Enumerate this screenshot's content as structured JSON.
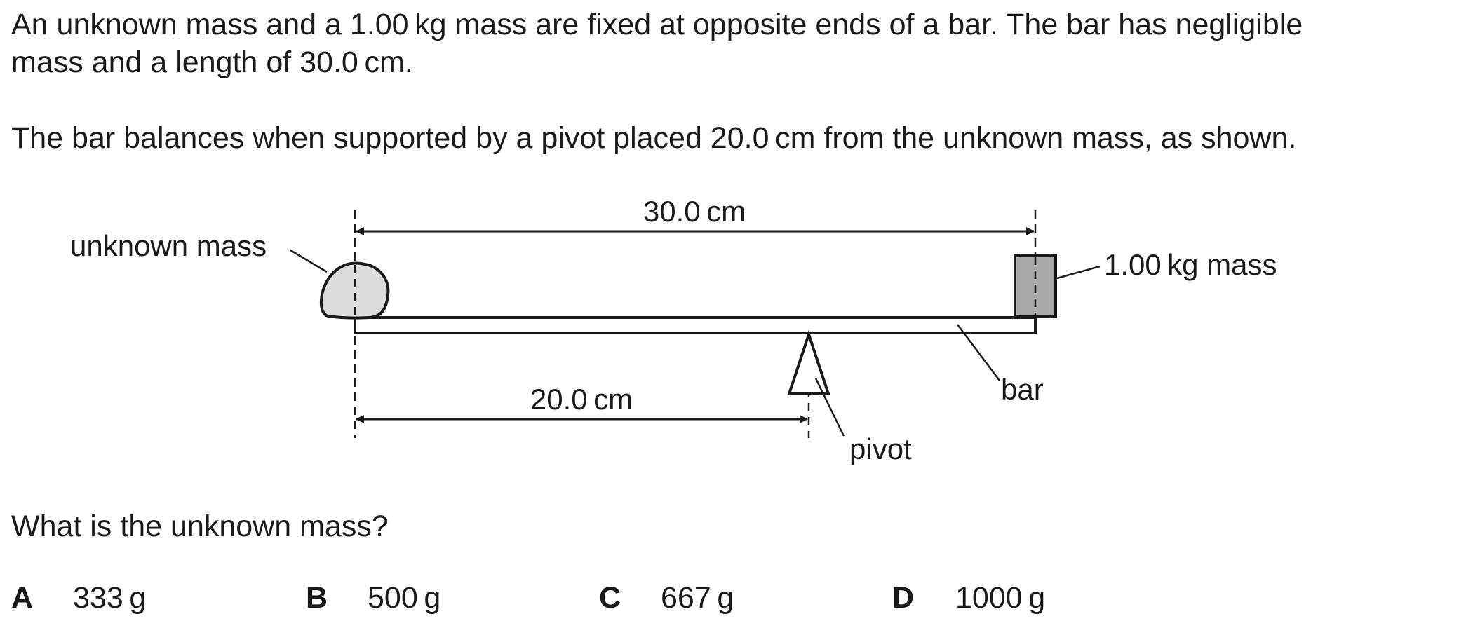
{
  "question": {
    "intro_line1": "An unknown mass and a 1.00 kg mass are fixed at opposite ends of a bar. The bar has negligible",
    "intro_line2": "mass and a length of 30.0 cm.",
    "setup": "The bar balances when supported by a pivot placed 20.0 cm from the unknown mass, as shown.",
    "prompt": "What is the unknown mass?"
  },
  "diagram": {
    "label_unknown_mass": "unknown mass",
    "label_known_mass": "1.00 kg mass",
    "label_length": "30.0 cm",
    "label_pivot_distance": "20.0 cm",
    "label_pivot": "pivot",
    "label_bar": "bar",
    "colors": {
      "unknown_mass_fill": "#dcdcdc",
      "known_mass_fill": "#a8a8a8",
      "line": "#1a1a1a"
    }
  },
  "options": [
    {
      "letter": "A",
      "value": "333 g"
    },
    {
      "letter": "B",
      "value": "500 g"
    },
    {
      "letter": "C",
      "value": "667 g"
    },
    {
      "letter": "D",
      "value": "1000 g"
    }
  ]
}
